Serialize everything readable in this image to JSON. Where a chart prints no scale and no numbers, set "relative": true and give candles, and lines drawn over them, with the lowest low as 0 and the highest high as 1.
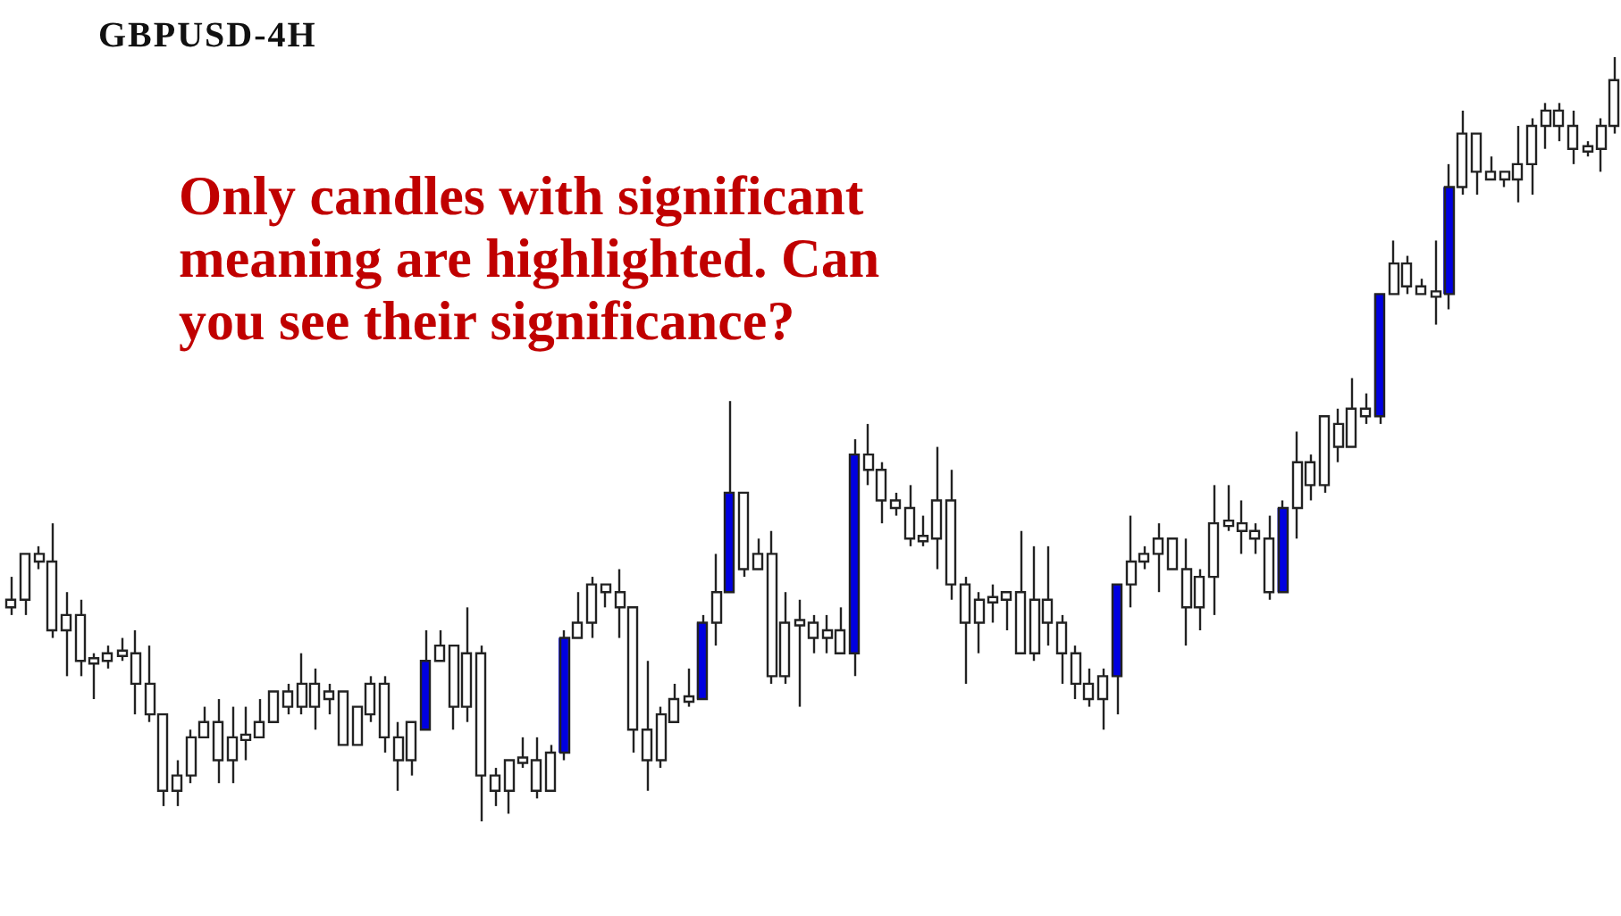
{
  "chart_data": {
    "type": "candlestick",
    "title": "GBPUSD-4H",
    "annotations": [
      "Only candles with significant meaning are highlighted. Can you see their significance?"
    ],
    "relative": true,
    "categories": [
      null,
      null,
      null,
      null,
      null,
      null,
      null,
      null,
      null,
      null,
      null,
      null,
      null,
      null,
      null,
      null,
      null,
      null,
      null,
      null,
      null,
      null,
      null,
      null,
      null,
      null,
      null,
      null,
      null,
      null,
      null,
      null,
      null,
      null,
      null,
      null,
      null,
      null,
      null,
      null,
      null,
      null,
      null,
      null,
      null,
      null,
      null,
      null,
      null,
      null,
      null,
      null,
      null,
      null,
      null,
      null,
      null,
      null,
      null,
      null,
      null,
      null,
      null,
      null,
      null,
      null,
      null,
      null,
      null,
      null,
      null,
      null,
      null,
      null,
      null,
      null,
      null,
      null,
      null,
      null,
      null,
      null,
      null,
      null,
      null,
      null,
      null,
      null,
      null,
      null,
      null,
      null,
      null,
      null,
      null,
      null,
      null,
      null,
      null,
      null,
      null,
      null,
      null,
      null,
      null,
      null,
      null,
      null,
      null,
      null,
      null,
      null,
      null,
      null,
      null,
      null,
      null
    ],
    "ohlc": [
      [
        0.29,
        0.32,
        0.27,
        0.28
      ],
      [
        0.35,
        0.35,
        0.27,
        0.29
      ],
      [
        0.35,
        0.36,
        0.33,
        0.34
      ],
      [
        0.34,
        0.39,
        0.24,
        0.25
      ],
      [
        0.27,
        0.3,
        0.19,
        0.25
      ],
      [
        0.27,
        0.29,
        0.19,
        0.21
      ],
      [
        0.21,
        0.22,
        0.16,
        0.21
      ],
      [
        0.22,
        0.23,
        0.2,
        0.21
      ],
      [
        0.22,
        0.24,
        0.21,
        0.22
      ],
      [
        0.22,
        0.25,
        0.14,
        0.18
      ],
      [
        0.18,
        0.23,
        0.13,
        0.14
      ],
      [
        0.14,
        0.14,
        0.02,
        0.04
      ],
      [
        0.06,
        0.08,
        0.02,
        0.04
      ],
      [
        0.11,
        0.12,
        0.05,
        0.06
      ],
      [
        0.13,
        0.15,
        0.11,
        0.11
      ],
      [
        0.13,
        0.16,
        0.05,
        0.08
      ],
      [
        0.11,
        0.15,
        0.05,
        0.08
      ],
      [
        0.11,
        0.15,
        0.08,
        0.11
      ],
      [
        0.13,
        0.16,
        0.11,
        0.11
      ],
      [
        0.17,
        0.17,
        0.13,
        0.13
      ],
      [
        0.17,
        0.18,
        0.14,
        0.15
      ],
      [
        0.18,
        0.22,
        0.14,
        0.15
      ],
      [
        0.18,
        0.2,
        0.12,
        0.15
      ],
      [
        0.17,
        0.18,
        0.14,
        0.16
      ],
      [
        0.17,
        0.17,
        0.1,
        0.1
      ],
      [
        0.15,
        0.15,
        0.1,
        0.1
      ],
      [
        0.18,
        0.19,
        0.13,
        0.14
      ],
      [
        0.18,
        0.19,
        0.09,
        0.11
      ],
      [
        0.11,
        0.13,
        0.04,
        0.08
      ],
      [
        0.13,
        0.13,
        0.06,
        0.08
      ],
      [
        0.12,
        0.25,
        0.12,
        0.21
      ],
      [
        0.23,
        0.25,
        0.21,
        0.21
      ],
      [
        0.23,
        0.23,
        0.12,
        0.15
      ],
      [
        0.22,
        0.28,
        0.13,
        0.15
      ],
      [
        0.22,
        0.23,
        0,
        0.06
      ],
      [
        0.06,
        0.07,
        0.02,
        0.04
      ],
      [
        0.08,
        0.08,
        0.01,
        0.04
      ],
      [
        0.08,
        0.11,
        0.07,
        0.08
      ],
      [
        0.08,
        0.11,
        0.03,
        0.04
      ],
      [
        0.09,
        0.1,
        0.04,
        0.04
      ],
      [
        0.09,
        0.25,
        0.08,
        0.24
      ],
      [
        0.26,
        0.3,
        0.24,
        0.24
      ],
      [
        0.31,
        0.32,
        0.24,
        0.26
      ],
      [
        0.31,
        0.31,
        0.28,
        0.3
      ],
      [
        0.3,
        0.33,
        0.24,
        0.28
      ],
      [
        0.28,
        0.28,
        0.09,
        0.12
      ],
      [
        0.12,
        0.21,
        0.04,
        0.08
      ],
      [
        0.14,
        0.15,
        0.07,
        0.08
      ],
      [
        0.16,
        0.18,
        0.13,
        0.13
      ],
      [
        0.16,
        0.2,
        0.15,
        0.16
      ],
      [
        0.16,
        0.27,
        0.16,
        0.26
      ],
      [
        0.3,
        0.35,
        0.23,
        0.26
      ],
      [
        0.3,
        0.55,
        0.3,
        0.43
      ],
      [
        0.43,
        0.43,
        0.32,
        0.33
      ],
      [
        0.35,
        0.37,
        0.33,
        0.33
      ],
      [
        0.35,
        0.38,
        0.18,
        0.19
      ],
      [
        0.26,
        0.3,
        0.18,
        0.19
      ],
      [
        0.26,
        0.29,
        0.15,
        0.26
      ],
      [
        0.26,
        0.27,
        0.22,
        0.24
      ],
      [
        0.25,
        0.27,
        0.22,
        0.24
      ],
      [
        0.25,
        0.28,
        0.22,
        0.22
      ],
      [
        0.22,
        0.5,
        0.19,
        0.48
      ],
      [
        0.48,
        0.52,
        0.44,
        0.46
      ],
      [
        0.46,
        0.47,
        0.39,
        0.42
      ],
      [
        0.42,
        0.43,
        0.4,
        0.41
      ],
      [
        0.41,
        0.44,
        0.36,
        0.37
      ],
      [
        0.37,
        0.4,
        0.36,
        0.37
      ],
      [
        0.42,
        0.49,
        0.33,
        0.37
      ],
      [
        0.42,
        0.46,
        0.29,
        0.31
      ],
      [
        0.31,
        0.32,
        0.18,
        0.26
      ],
      [
        0.29,
        0.3,
        0.22,
        0.26
      ],
      [
        0.29,
        0.31,
        0.26,
        0.29
      ],
      [
        0.3,
        0.3,
        0.25,
        0.29
      ],
      [
        0.3,
        0.38,
        0.22,
        0.22
      ],
      [
        0.29,
        0.36,
        0.21,
        0.22
      ],
      [
        0.29,
        0.36,
        0.23,
        0.26
      ],
      [
        0.26,
        0.27,
        0.18,
        0.22
      ],
      [
        0.22,
        0.23,
        0.16,
        0.18
      ],
      [
        0.18,
        0.2,
        0.15,
        0.16
      ],
      [
        0.19,
        0.2,
        0.12,
        0.16
      ],
      [
        0.19,
        0.31,
        0.14,
        0.31
      ],
      [
        0.34,
        0.4,
        0.28,
        0.31
      ],
      [
        0.35,
        0.36,
        0.33,
        0.34
      ],
      [
        0.37,
        0.39,
        0.3,
        0.35
      ],
      [
        0.37,
        0.37,
        0.33,
        0.33
      ],
      [
        0.33,
        0.37,
        0.23,
        0.28
      ],
      [
        0.32,
        0.33,
        0.25,
        0.28
      ],
      [
        0.39,
        0.44,
        0.27,
        0.32
      ],
      [
        0.39,
        0.44,
        0.38,
        0.39
      ],
      [
        0.39,
        0.42,
        0.35,
        0.38
      ],
      [
        0.38,
        0.39,
        0.35,
        0.37
      ],
      [
        0.37,
        0.4,
        0.29,
        0.3
      ],
      [
        0.3,
        0.42,
        0.3,
        0.41
      ],
      [
        0.47,
        0.51,
        0.37,
        0.41
      ],
      [
        0.47,
        0.48,
        0.42,
        0.44
      ],
      [
        0.53,
        0.53,
        0.43,
        0.44
      ],
      [
        0.52,
        0.54,
        0.47,
        0.49
      ],
      [
        0.54,
        0.58,
        0.49,
        0.49
      ],
      [
        0.54,
        0.56,
        0.52,
        0.53
      ],
      [
        0.53,
        0.69,
        0.52,
        0.69
      ],
      [
        0.73,
        0.76,
        0.69,
        0.69
      ],
      [
        0.73,
        0.74,
        0.69,
        0.7
      ],
      [
        0.7,
        0.71,
        0.69,
        0.69
      ],
      [
        0.69,
        0.76,
        0.65,
        0.69
      ],
      [
        0.69,
        0.86,
        0.67,
        0.83
      ],
      [
        0.9,
        0.93,
        0.82,
        0.83
      ],
      [
        0.9,
        0.9,
        0.82,
        0.85
      ],
      [
        0.85,
        0.87,
        0.84,
        0.84
      ],
      [
        0.85,
        0.85,
        0.83,
        0.84
      ],
      [
        0.86,
        0.91,
        0.81,
        0.84
      ],
      [
        0.91,
        0.92,
        0.82,
        0.86
      ],
      [
        0.93,
        0.94,
        0.88,
        0.91
      ],
      [
        0.93,
        0.94,
        0.89,
        0.91
      ],
      [
        0.91,
        0.93,
        0.86,
        0.88
      ],
      [
        0.88,
        0.89,
        0.87,
        0.88
      ],
      [
        0.91,
        0.92,
        0.85,
        0.88
      ],
      [
        0.97,
        1,
        0.9,
        0.91
      ]
    ],
    "colors": [
      "#ffffff",
      "#ffffff",
      "#ffffff",
      "#ffffff",
      "#ffffff",
      "#ffffff",
      "#ffffff",
      "#ffffff",
      "#ffffff",
      "#ffffff",
      "#ffffff",
      "#ffffff",
      "#ffffff",
      "#ffffff",
      "#ffffff",
      "#ffffff",
      "#ffffff",
      "#ffffff",
      "#ffffff",
      "#ffffff",
      "#ffffff",
      "#ffffff",
      "#ffffff",
      "#ffffff",
      "#ffffff",
      "#ffffff",
      "#ffffff",
      "#ffffff",
      "#ffffff",
      "#ffffff",
      "#0000e0",
      "#ffffff",
      "#ffffff",
      "#ffffff",
      "#ffffff",
      "#ffffff",
      "#ffffff",
      "#ffffff",
      "#ffffff",
      "#ffffff",
      "#0000e0",
      "#ffffff",
      "#ffffff",
      "#ffffff",
      "#ffffff",
      "#ffffff",
      "#ffffff",
      "#ffffff",
      "#ffffff",
      "#ffffff",
      "#0000e0",
      "#ffffff",
      "#0000e0",
      "#ffffff",
      "#ffffff",
      "#ffffff",
      "#ffffff",
      "#ffffff",
      "#ffffff",
      "#ffffff",
      "#ffffff",
      "#0000e0",
      "#ffffff",
      "#ffffff",
      "#ffffff",
      "#ffffff",
      "#ffffff",
      "#ffffff",
      "#ffffff",
      "#ffffff",
      "#ffffff",
      "#ffffff",
      "#ffffff",
      "#ffffff",
      "#ffffff",
      "#ffffff",
      "#ffffff",
      "#ffffff",
      "#ffffff",
      "#ffffff",
      "#0000e0",
      "#ffffff",
      "#ffffff",
      "#ffffff",
      "#ffffff",
      "#ffffff",
      "#ffffff",
      "#ffffff",
      "#ffffff",
      "#ffffff",
      "#ffffff",
      "#ffffff",
      "#0000e0",
      "#ffffff",
      "#ffffff",
      "#ffffff",
      "#ffffff",
      "#ffffff",
      "#ffffff",
      "#0000e0",
      "#ffffff",
      "#ffffff",
      "#ffffff",
      "#ffffff",
      "#0000e0",
      "#ffffff",
      "#ffffff",
      "#ffffff",
      "#ffffff",
      "#ffffff",
      "#ffffff",
      "#ffffff",
      "#ffffff",
      "#ffffff",
      "#ffffff",
      "#ffffff",
      "#ffffff"
    ]
  }
}
